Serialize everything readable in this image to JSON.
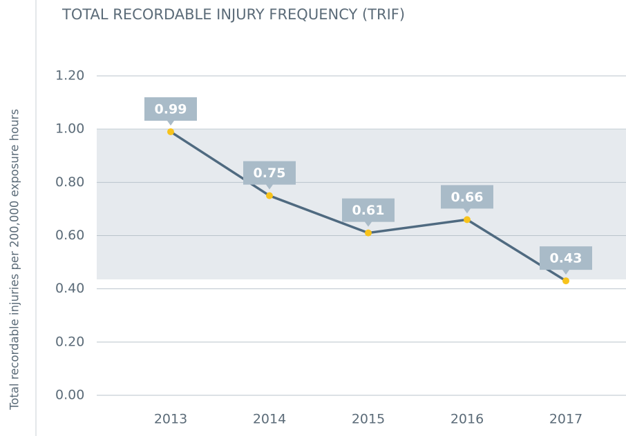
{
  "chart_data": {
    "type": "line",
    "title": "TOTAL RECORDABLE INJURY FREQUENCY (TRIF)",
    "y_label": "Total recordable injuries per 200,000 exposure hours",
    "categories": [
      "2013",
      "2014",
      "2015",
      "2016",
      "2017"
    ],
    "values": [
      0.99,
      0.75,
      0.61,
      0.66,
      0.43
    ],
    "value_labels": [
      "0.99",
      "0.75",
      "0.61",
      "0.66",
      "0.43"
    ],
    "color": "#4f6a80",
    "marker_color": "#f7c31c",
    "ylim": [
      0,
      1.2
    ],
    "yticks": [
      {
        "value": 0,
        "label": "0.00"
      },
      {
        "value": 0.2,
        "label": "0.20"
      },
      {
        "value": 0.4,
        "label": "0.40"
      },
      {
        "value": 0.6,
        "label": "0.60"
      },
      {
        "value": 0.8,
        "label": "0.80"
      },
      {
        "value": 1.0,
        "label": "1.00"
      },
      {
        "value": 1.2,
        "label": "1.20"
      }
    ],
    "grid": true
  }
}
